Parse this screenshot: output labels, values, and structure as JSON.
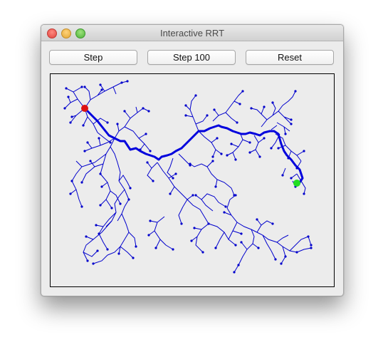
{
  "window": {
    "title": "Interactive RRT"
  },
  "toolbar": {
    "step_label": "Step",
    "step100_label": "Step 100",
    "reset_label": "Reset"
  },
  "colors": {
    "tree": "#0000cc",
    "path": "#0000dd",
    "start": "#dd1111",
    "goal": "#22dd22"
  },
  "icons": [
    "close-icon",
    "minimize-icon",
    "maximize-icon"
  ]
}
